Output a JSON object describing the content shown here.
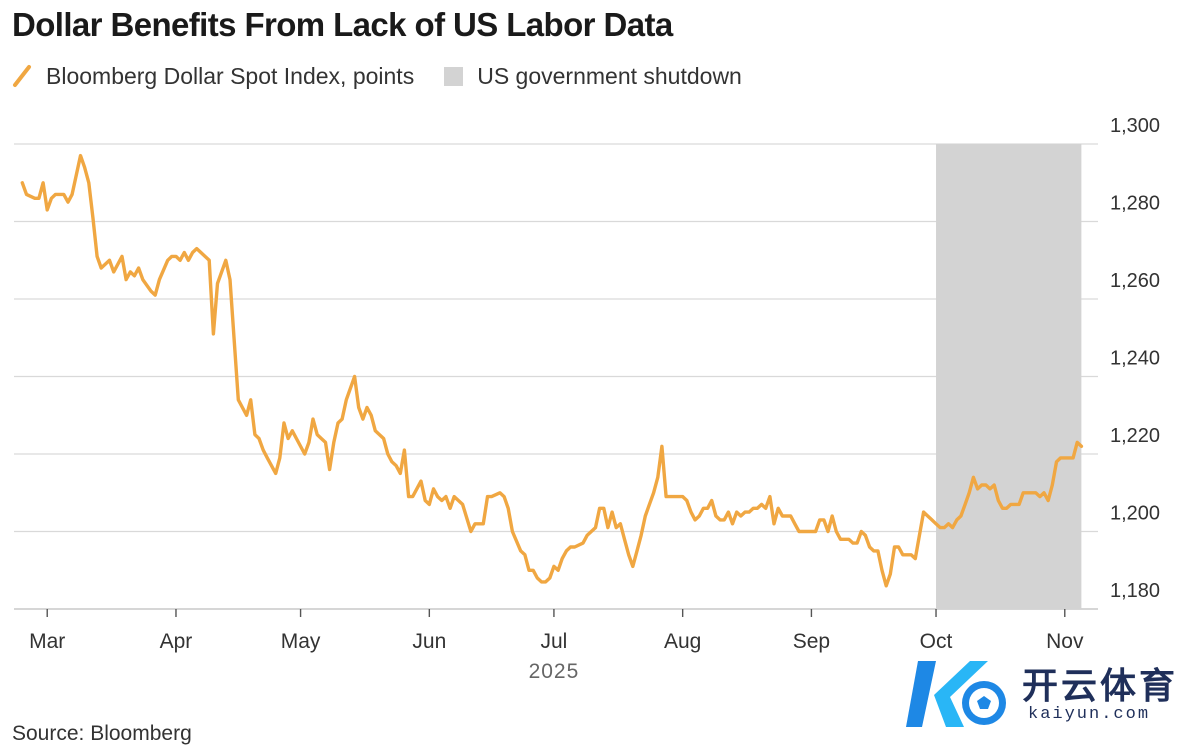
{
  "title": "Dollar Benefits From Lack of US Labor Data",
  "legend": {
    "series_label": "Bloomberg Dollar Spot Index, points",
    "shade_label": "US government shutdown"
  },
  "source": "Source: Bloomberg",
  "watermark": {
    "brand_cn": "开云体育",
    "url": "kaiyun.com"
  },
  "colors": {
    "line": "#f0a742",
    "shade": "#d3d3d3",
    "grid": "#d9d9d9",
    "axis": "#333333"
  },
  "chart_data": {
    "type": "line",
    "title": "Dollar Benefits From Lack of US Labor Data",
    "xlabel": "2025",
    "ylabel": "",
    "ylim": [
      1180,
      1300
    ],
    "yticks": [
      1180,
      1200,
      1220,
      1240,
      1260,
      1280,
      1300
    ],
    "ytick_labels": [
      "1,180",
      "1,200",
      "1,220",
      "1,240",
      "1,260",
      "1,280",
      "1,300"
    ],
    "x_unit": "days since 2025-01-01",
    "xlim": [
      51,
      312
    ],
    "xticks": [
      59,
      90,
      120,
      151,
      181,
      212,
      243,
      273,
      304
    ],
    "xtick_labels": [
      "Mar",
      "Apr",
      "May",
      "Jun",
      "Jul",
      "Aug",
      "Sep",
      "Oct",
      "Nov"
    ],
    "shaded_region": {
      "label": "US government shutdown",
      "x": [
        273,
        308
      ]
    },
    "series": [
      {
        "name": "Bloomberg Dollar Spot Index, points",
        "x": [
          53,
          54,
          56,
          57,
          58,
          59,
          60,
          61,
          63,
          64,
          65,
          67,
          68,
          69,
          70,
          71,
          72,
          74,
          75,
          77,
          78,
          79,
          80,
          81,
          82,
          84,
          85,
          86,
          88,
          89,
          90,
          91,
          92,
          93,
          94,
          95,
          96,
          98,
          99,
          100,
          102,
          103,
          105,
          106,
          107,
          108,
          109,
          110,
          111,
          112,
          114,
          115,
          116,
          117,
          118,
          119,
          121,
          122,
          123,
          124,
          125,
          126,
          127,
          128,
          129,
          130,
          131,
          133,
          134,
          135,
          136,
          137,
          138,
          140,
          141,
          142,
          143,
          144,
          145,
          146,
          147,
          149,
          150,
          151,
          152,
          153,
          154,
          155,
          156,
          157,
          158,
          159,
          161,
          162,
          163,
          164,
          165,
          166,
          168,
          169,
          170,
          171,
          173,
          174,
          175,
          176,
          177,
          178,
          179,
          180,
          181,
          182,
          183,
          184,
          185,
          186,
          188,
          189,
          190,
          191,
          192,
          193,
          194,
          195,
          196,
          197,
          198,
          199,
          200,
          201,
          202,
          203,
          204,
          205,
          206,
          207,
          208,
          209,
          210,
          212,
          213,
          214,
          215,
          216,
          217,
          218,
          219,
          220,
          221,
          222,
          223,
          224,
          225,
          226,
          227,
          228,
          229,
          230,
          231,
          232,
          233,
          234,
          235,
          236,
          237,
          238,
          239,
          240,
          241,
          242,
          243,
          244,
          245,
          246,
          247,
          248,
          249,
          250,
          251,
          252,
          253,
          254,
          255,
          256,
          257,
          258,
          259,
          260,
          261,
          262,
          263,
          264,
          265,
          266,
          267,
          268,
          269,
          270,
          271,
          272,
          273,
          274,
          275,
          276,
          277,
          278,
          279,
          280,
          281,
          282,
          283,
          284,
          285,
          286,
          287,
          288,
          289,
          290,
          291,
          292,
          293,
          294,
          295,
          296,
          297,
          298,
          299,
          300,
          301,
          302,
          303,
          304,
          305,
          306,
          307,
          308
        ],
        "values": [
          1290,
          1287,
          1286,
          1286,
          1290,
          1283,
          1286,
          1287,
          1287,
          1285,
          1287,
          1297,
          1294,
          1290,
          1281,
          1271,
          1268,
          1270,
          1267,
          1271,
          1265,
          1267,
          1266,
          1268,
          1265,
          1262,
          1261,
          1265,
          1270,
          1271,
          1271,
          1270,
          1272,
          1270,
          1272,
          1273,
          1272,
          1270,
          1251,
          1264,
          1270,
          1265,
          1234,
          1232,
          1230,
          1234,
          1225,
          1224,
          1221,
          1219,
          1215,
          1219,
          1228,
          1224,
          1226,
          1224,
          1220,
          1223,
          1229,
          1225,
          1224,
          1223,
          1216,
          1223,
          1228,
          1229,
          1234,
          1240,
          1232,
          1229,
          1232,
          1230,
          1226,
          1224,
          1220,
          1218,
          1217,
          1215,
          1221,
          1209,
          1209,
          1213,
          1208,
          1207,
          1211,
          1209,
          1208,
          1209,
          1206,
          1209,
          1208,
          1207,
          1200,
          1202,
          1202,
          1202,
          1209,
          1209,
          1210,
          1209,
          1206,
          1200,
          1195,
          1194,
          1190,
          1190,
          1188,
          1187,
          1187,
          1188,
          1191,
          1190,
          1193,
          1195,
          1196,
          1196,
          1197,
          1199,
          1200,
          1201,
          1206,
          1206,
          1201,
          1205,
          1201,
          1202,
          1198,
          1194,
          1191,
          1195,
          1199,
          1204,
          1207,
          1210,
          1214,
          1222,
          1209,
          1209,
          1209,
          1209,
          1208,
          1205,
          1203,
          1204,
          1206,
          1206,
          1208,
          1204,
          1203,
          1203,
          1205,
          1202,
          1205,
          1204,
          1205,
          1205,
          1206,
          1206,
          1207,
          1206,
          1209,
          1202,
          1206,
          1204,
          1204,
          1204,
          1202,
          1200,
          1200,
          1200,
          1200,
          1200,
          1203,
          1203,
          1200,
          1204,
          1200,
          1198,
          1198,
          1198,
          1197,
          1197,
          1200,
          1199,
          1196,
          1195,
          1195,
          1190,
          1186,
          1189,
          1196,
          1196,
          1194,
          1194,
          1194,
          1193,
          1199,
          1205,
          1204,
          1203,
          1202,
          1201,
          1201,
          1202,
          1201,
          1203,
          1204,
          1207,
          1210,
          1214,
          1211,
          1212,
          1212,
          1211,
          1212,
          1208,
          1206,
          1206,
          1207,
          1207,
          1207,
          1210,
          1210,
          1210,
          1210,
          1209,
          1210,
          1208,
          1212,
          1218,
          1219,
          1219,
          1219,
          1219,
          1223,
          1222
        ]
      }
    ]
  }
}
